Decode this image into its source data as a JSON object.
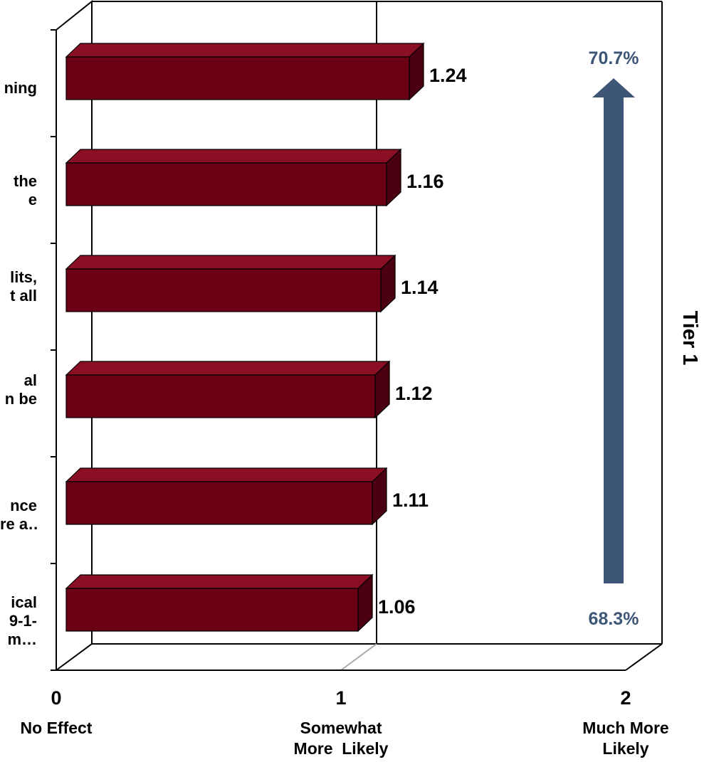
{
  "chart_data": {
    "type": "bar",
    "orientation": "horizontal",
    "style": "3d",
    "categories": [
      "ning",
      " the\ne",
      "lits,\nt all",
      "al\nn be",
      "nce\nre a…",
      "ical\n9-1-\nm…"
    ],
    "values": [
      1.24,
      1.16,
      1.14,
      1.12,
      1.11,
      1.06
    ],
    "data_labels": [
      "1.24",
      "1.16",
      "1.14",
      "1.12",
      "1.11",
      "1.06"
    ],
    "xlim": [
      0,
      2
    ],
    "x_ticks": [
      {
        "value": 0,
        "label": "0",
        "sublabel": "No Effect"
      },
      {
        "value": 1,
        "label": "1",
        "sublabel": "Somewhat\nMore  Likely"
      },
      {
        "value": 2,
        "label": "2",
        "sublabel": "Much More\nLikely"
      }
    ],
    "annotations": {
      "arrow_top_label": "70.7%",
      "arrow_bottom_label": "68.3%",
      "side_label": "Tier 1"
    },
    "colors": {
      "bar_front": "#6b0015",
      "bar_top": "#8a0f25",
      "bar_side": "#4a0010",
      "arrow": "#3d5577",
      "pct_text": "#3d5577"
    }
  }
}
